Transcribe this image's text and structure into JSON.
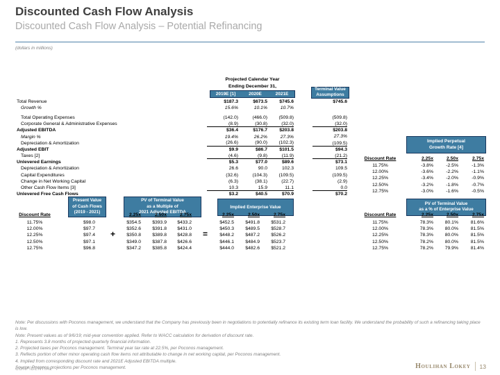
{
  "header": {
    "title": "Discounted Cash Flow Analysis",
    "subtitle": "Discounted Cash Flow Analysis – Potential Refinancing",
    "units": "(dollars in millions)"
  },
  "colors": {
    "accent_teal": "#3E7CA1",
    "box_border": "#17365D",
    "rule_blue": "#4E81A8",
    "logo_gold": "#97876A"
  },
  "main_table": {
    "group_header": [
      "Projected Calendar Year",
      "Ending December 31,"
    ],
    "year_cols": [
      "2019E [1]",
      "2020E",
      "2021E"
    ],
    "terminal_box": [
      "Terminal Value",
      "Assumptions"
    ],
    "rows": [
      {
        "label": "Total Revenue",
        "values": [
          "$187.3",
          "$673.5",
          "$745.6"
        ],
        "terminal": "$745.6",
        "bold_values": true
      },
      {
        "label": "Growth %",
        "italic": true,
        "indent": true,
        "values": [
          "15.6%",
          "10.1%",
          "10.7%"
        ],
        "terminal": ""
      },
      {
        "spacer": true
      },
      {
        "label": "Total Operating Expenses",
        "indent": true,
        "values": [
          "(142.0)",
          "(466.0)",
          "(509.8)"
        ],
        "terminal": "(509.8)"
      },
      {
        "label": "Corporate General & Administrative Expenses",
        "indent": true,
        "values": [
          "(8.9)",
          "(30.8)",
          "(32.0)"
        ],
        "terminal": "(32.0)",
        "underline": true
      },
      {
        "label": "Adjusted EBITDA",
        "bold": true,
        "values": [
          "$36.4",
          "$176.7",
          "$203.8"
        ],
        "terminal": "$203.8",
        "bold_values": true
      },
      {
        "label": "Margin %",
        "italic": true,
        "indent": true,
        "values": [
          "19.4%",
          "26.2%",
          "27.3%"
        ],
        "terminal": "27.3%"
      },
      {
        "label": "Depreciation & Amortization",
        "indent": true,
        "values": [
          "(26.6)",
          "(90.0)",
          "(102.3)"
        ],
        "terminal": "(109.5)",
        "underline": true
      },
      {
        "label": "Adjusted EBIT",
        "bold": true,
        "values": [
          "$9.9",
          "$86.7",
          "$101.5"
        ],
        "terminal": "$94.3",
        "bold_values": true
      },
      {
        "label": "Taxes [2]",
        "indent": true,
        "values": [
          "(4.6)",
          "(9.8)",
          "(11.9)"
        ],
        "terminal": "(21.2)",
        "underline": true
      },
      {
        "label": "Unlevered Earnings",
        "bold": true,
        "values": [
          "$5.3",
          "$77.0",
          "$89.6"
        ],
        "terminal": "$73.1",
        "bold_values": true
      },
      {
        "label": "Depreciation & Amortization",
        "indent": true,
        "values": [
          "26.6",
          "90.0",
          "102.3"
        ],
        "terminal": "109.5"
      },
      {
        "label": "Capital Expenditures",
        "indent": true,
        "values": [
          "(32.6)",
          "(104.3)",
          "(109.5)"
        ],
        "terminal": "(109.5)"
      },
      {
        "label": "Change in Net Working Capital",
        "indent": true,
        "values": [
          "(6.3)",
          "(38.1)",
          "(22.7)"
        ],
        "terminal": "(2.9)"
      },
      {
        "label": "Other Cash Flow Items [3]",
        "indent": true,
        "values": [
          "10.3",
          "15.9",
          "11.1"
        ],
        "terminal": "0.0",
        "underline": true
      },
      {
        "label": "Unlevered Free Cash Flows",
        "bold": true,
        "values": [
          "$3.2",
          "$40.5",
          "$70.9"
        ],
        "terminal": "$70.2",
        "bold_values": true
      }
    ]
  },
  "growth_table": {
    "box": [
      "Implied Perpetual",
      "Growth Rate [4]"
    ],
    "discount_label": "Discount Rate",
    "cols": [
      "2.25x",
      "2.50x",
      "2.75x"
    ],
    "rows": [
      {
        "rate": "11.75%",
        "values": [
          "-3.8%",
          "-2.5%",
          "-1.3%"
        ]
      },
      {
        "rate": "12.00%",
        "values": [
          "-3.6%",
          "-2.2%",
          "-1.1%"
        ]
      },
      {
        "rate": "12.25%",
        "values": [
          "-3.4%",
          "-2.0%",
          "-0.9%"
        ]
      },
      {
        "rate": "12.50%",
        "values": [
          "-3.2%",
          "-1.8%",
          "-0.7%"
        ]
      },
      {
        "rate": "12.75%",
        "values": [
          "-3.0%",
          "-1.6%",
          "-0.5%"
        ]
      }
    ]
  },
  "pv_section": {
    "discount_label": "Discount Rate",
    "pv_box": [
      "Present Value",
      "of Cash Flows",
      "(2019 - 2021)"
    ],
    "tv_box": [
      "PV of Terminal Value",
      "as a Multiple of",
      "2021 Adjusted EBITDA"
    ],
    "ev_box": "Implied Enterprise Value",
    "pct_box": [
      "PV of Terminal Value",
      "as a % of Enterprise Value"
    ],
    "cols": [
      "2.25x",
      "2.50x",
      "2.75x"
    ],
    "plus": "+",
    "equals": "=",
    "rows": [
      {
        "rate": "11.75%",
        "pv": "$98.0",
        "tv": [
          "$354.5",
          "$393.9",
          "$433.2"
        ],
        "ev": [
          "$452.5",
          "$491.8",
          "$531.2"
        ],
        "pct": [
          "78.3%",
          "80.1%",
          "81.6%"
        ]
      },
      {
        "rate": "12.00%",
        "pv": "$97.7",
        "tv": [
          "$352.6",
          "$391.8",
          "$431.0"
        ],
        "ev": [
          "$450.3",
          "$489.5",
          "$528.7"
        ],
        "pct": [
          "78.3%",
          "80.0%",
          "81.5%"
        ]
      },
      {
        "rate": "12.25%",
        "pv": "$97.4",
        "tv": [
          "$350.8",
          "$389.8",
          "$428.8"
        ],
        "ev": [
          "$448.2",
          "$487.2",
          "$526.2"
        ],
        "pct": [
          "78.3%",
          "80.0%",
          "81.5%"
        ]
      },
      {
        "rate": "12.50%",
        "pv": "$97.1",
        "tv": [
          "$349.0",
          "$387.8",
          "$426.6"
        ],
        "ev": [
          "$446.1",
          "$484.9",
          "$523.7"
        ],
        "pct": [
          "78.2%",
          "80.0%",
          "81.5%"
        ]
      },
      {
        "rate": "12.75%",
        "pv": "$96.8",
        "tv": [
          "$347.2",
          "$385.8",
          "$424.4"
        ],
        "ev": [
          "$444.0",
          "$482.6",
          "$521.2"
        ],
        "pct": [
          "78.2%",
          "79.9%",
          "81.4%"
        ]
      }
    ]
  },
  "footer": {
    "notes": [
      "Note: Per discussions with Poconos management, we understand that the Company has previously been in negotiations to potentially refinance its existing term loan facility. We understand the probability of such a refinancing taking place is low.",
      "Note: Present values as of 9/6/19; mid-year convention applied. Refer to WACC calculation for derivation of discount rate.",
      "1.  Represents 3.8 months of projected quarterly financial information.",
      "2.  Projected taxes per Poconos management. Terminal year tax rate at 22.5%, per Poconos management.",
      "3.  Reflects portion of other minor operating cash flow items not attributable to change in net working capital, per Poconos management.",
      "4.  Implied from corresponding discount rate and 2021E Adjusted EBITDA multiple.",
      "Source: Poconos projections per Poconos management."
    ],
    "confidential": "CONFIDENTIAL",
    "logo": "Houlihan Lokey",
    "page": "13"
  }
}
